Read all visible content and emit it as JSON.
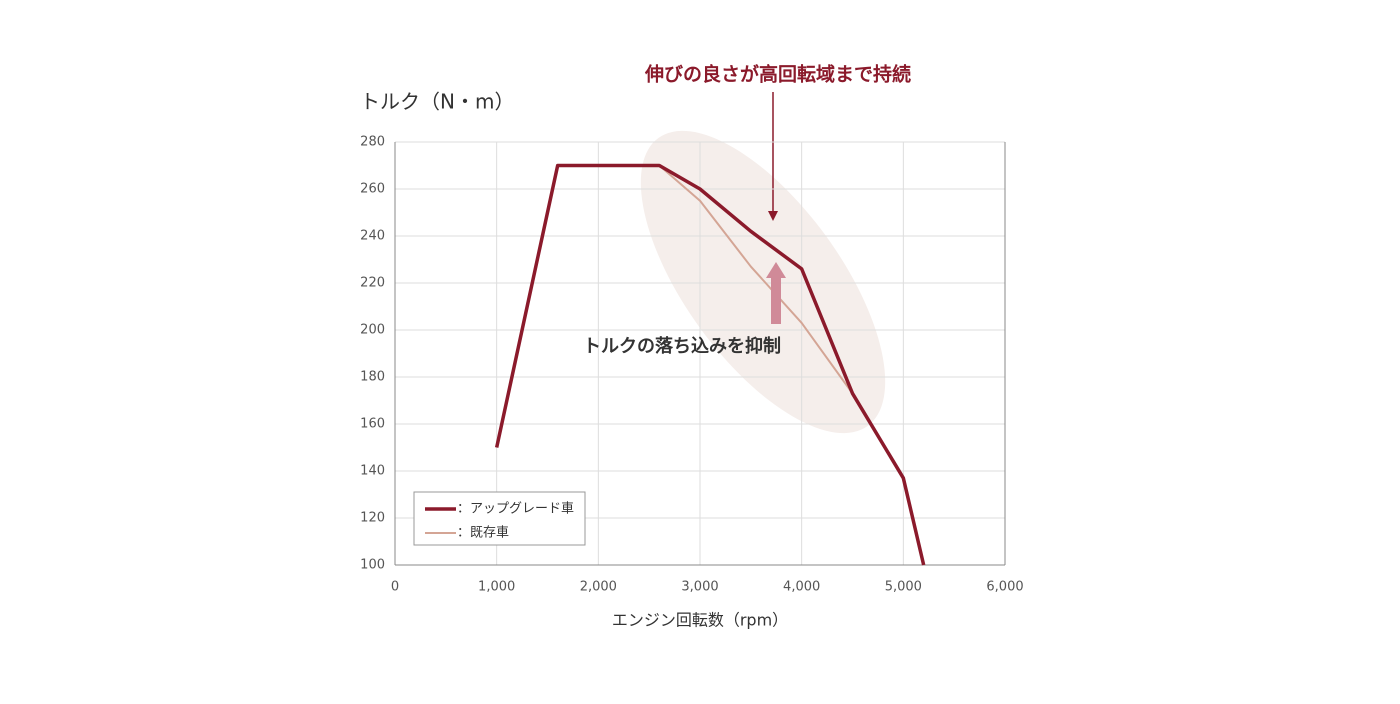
{
  "chart_data": {
    "type": "line",
    "title": "伸びの良さが高回転域まで持続",
    "annotation": "トルクの落ち込みを抑制",
    "y_label": "トルク（N・m）",
    "x_label": "エンジン回転数（rpm）",
    "series": [
      {
        "name": "：アップグレード車",
        "color": "#8b1a2b",
        "width": 3.5,
        "x": [
          1000,
          1600,
          2600,
          3000,
          3500,
          4000,
          4500,
          5000,
          5200
        ],
        "values": [
          150,
          270,
          270,
          260,
          242,
          226,
          173,
          137,
          100
        ]
      },
      {
        "name": "：既存車",
        "color": "#d4a595",
        "width": 2,
        "x": [
          2600,
          3000,
          3500,
          4000,
          4500,
          5000,
          5200
        ],
        "values": [
          270,
          255,
          227,
          203,
          173,
          137,
          100
        ]
      }
    ],
    "xlim": [
      0,
      6000
    ],
    "xticks": [
      0,
      {
        "value": 1000,
        "label": "1,000"
      },
      {
        "value": 2000,
        "label": "2,000"
      },
      {
        "value": 3000,
        "label": "3,000"
      },
      {
        "value": 4000,
        "label": "4,000"
      },
      {
        "value": 5000,
        "label": "5,000"
      },
      {
        "value": 6000,
        "label": "6,000"
      }
    ],
    "ylim": [
      100,
      280
    ],
    "yticks": [
      100,
      120,
      140,
      160,
      180,
      200,
      220,
      240,
      260,
      280
    ],
    "grid": true
  }
}
